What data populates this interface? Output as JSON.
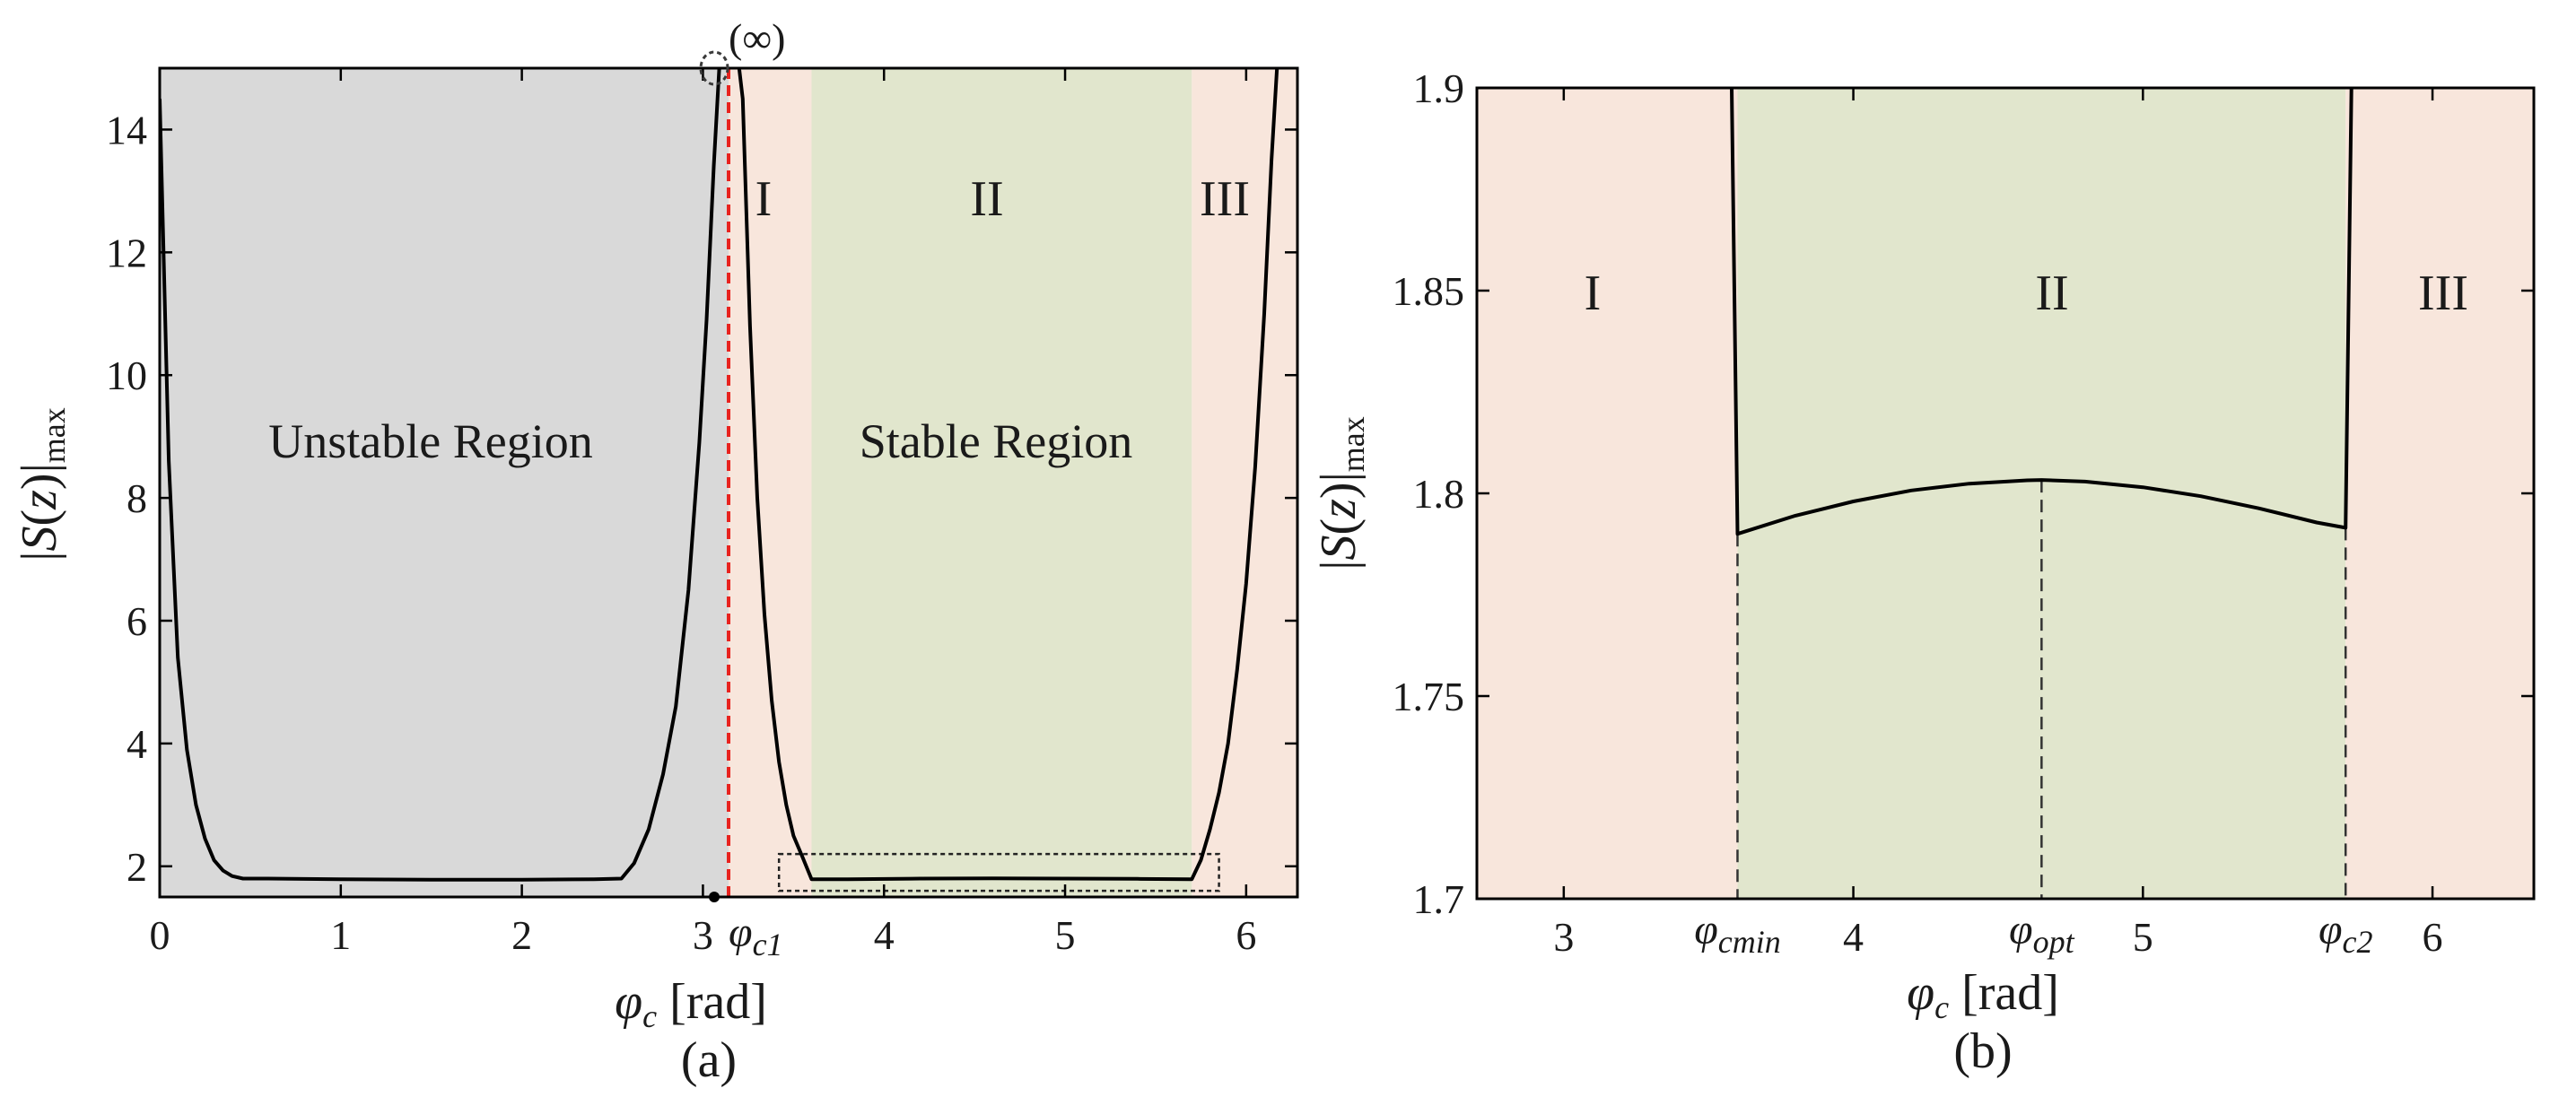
{
  "chart_data": [
    {
      "panel": "a",
      "type": "line",
      "caption": "(a)",
      "xlabel": {
        "symbol": "φ",
        "sub": "c",
        "unit": "[rad]"
      },
      "ylabel": {
        "pre": "|",
        "fn": "S",
        "mid": "(",
        "var": "z",
        "post": ")|",
        "sub": "max"
      },
      "xlim": [
        0,
        6.2832
      ],
      "ylim": [
        1.5,
        15
      ],
      "xticks": [
        0,
        1,
        2,
        3,
        4,
        5,
        6
      ],
      "yticks": [
        2,
        4,
        6,
        8,
        10,
        12,
        14
      ],
      "grid": false,
      "regions": [
        {
          "name": "unstable",
          "x": [
            0,
            3.1416
          ],
          "color": "#d9d9d9"
        },
        {
          "name": "I",
          "x": [
            3.1416,
            3.6
          ],
          "color": "#f8e6dc"
        },
        {
          "name": "II",
          "x": [
            3.6,
            5.7
          ],
          "color": "#e1e6cd"
        },
        {
          "name": "III",
          "x": [
            5.7,
            6.2832
          ],
          "color": "#f8e6dc"
        }
      ],
      "region_labels": [
        "Unstable Region",
        "Stable Region"
      ],
      "roman_labels": [
        "I",
        "II",
        "III"
      ],
      "annotations": {
        "infinity": "(∞)",
        "phi_c1": {
          "symbol": "φ",
          "sub": "c1",
          "x": 3.1416
        }
      },
      "threshold_line": {
        "x": 3.1416,
        "color": "#e8231f"
      },
      "zoom_box": {
        "x": [
          3.42,
          5.85
        ],
        "y": [
          1.6,
          2.2
        ]
      },
      "series": [
        {
          "segment": "left",
          "x": [
            0.0,
            0.05,
            0.1,
            0.15,
            0.2,
            0.25,
            0.3,
            0.35,
            0.4,
            0.46,
            0.6,
            1.0,
            1.5,
            2.0,
            2.4,
            2.55,
            2.62,
            2.7,
            2.78,
            2.85,
            2.92,
            2.98,
            3.02,
            3.06,
            3.09,
            3.1
          ],
          "y": [
            14.5,
            8.6,
            5.4,
            3.9,
            3.0,
            2.45,
            2.1,
            1.93,
            1.84,
            1.8,
            1.8,
            1.79,
            1.78,
            1.78,
            1.79,
            1.8,
            2.05,
            2.6,
            3.5,
            4.6,
            6.5,
            8.9,
            10.9,
            13.4,
            15.0,
            15.0
          ]
        },
        {
          "segment": "right",
          "x": [
            3.2,
            3.22,
            3.26,
            3.3,
            3.34,
            3.38,
            3.42,
            3.46,
            3.5,
            3.55,
            3.6,
            3.8,
            4.2,
            4.6,
            5.0,
            5.4,
            5.7,
            5.75,
            5.8,
            5.85,
            5.9,
            5.95,
            6.0,
            6.05,
            6.1,
            6.14,
            6.17
          ],
          "y": [
            15.0,
            14.5,
            10.8,
            8.0,
            6.1,
            4.7,
            3.7,
            3.0,
            2.5,
            2.15,
            1.79,
            1.79,
            1.8,
            1.803,
            1.8,
            1.795,
            1.79,
            2.1,
            2.6,
            3.2,
            4.0,
            5.2,
            6.6,
            8.5,
            11.0,
            13.5,
            15.0
          ]
        }
      ]
    },
    {
      "panel": "b",
      "type": "line",
      "caption": "(b)",
      "xlabel": {
        "symbol": "φ",
        "sub": "c",
        "unit": "[rad]"
      },
      "ylabel": {
        "pre": "|",
        "fn": "S",
        "mid": "(",
        "var": "z",
        "post": ")|",
        "sub": "max"
      },
      "xlim": [
        2.7,
        6.35
      ],
      "ylim": [
        1.7,
        1.9
      ],
      "xticks": [
        3,
        4,
        5,
        6
      ],
      "yticks": [
        1.7,
        1.75,
        1.8,
        1.85,
        1.9
      ],
      "ytick_labels": [
        "1.7",
        "1.75",
        "1.8",
        "1.85",
        "1.9"
      ],
      "grid": false,
      "regions": [
        {
          "name": "I",
          "x": [
            2.7,
            3.6
          ],
          "color": "#f8e6dc"
        },
        {
          "name": "II",
          "x": [
            3.6,
            5.7
          ],
          "color": "#e1e6cd"
        },
        {
          "name": "III",
          "x": [
            5.7,
            6.35
          ],
          "color": "#f8e6dc"
        }
      ],
      "roman_labels": [
        "I",
        "II",
        "III"
      ],
      "markers": [
        {
          "symbol": "φ",
          "sub": "cmin",
          "x": 3.6
        },
        {
          "symbol": "φ",
          "sub": "opt",
          "x": 4.65
        },
        {
          "symbol": "φ",
          "sub": "c2",
          "x": 5.7
        }
      ],
      "series": [
        {
          "x": [
            3.58,
            3.6,
            3.8,
            4.0,
            4.2,
            4.4,
            4.6,
            4.65,
            4.8,
            5.0,
            5.2,
            5.4,
            5.6,
            5.7,
            5.72
          ],
          "y": [
            1.9,
            1.79,
            1.7945,
            1.798,
            1.8007,
            1.8024,
            1.8032,
            1.8033,
            1.8029,
            1.8015,
            1.7993,
            1.7963,
            1.7928,
            1.7915,
            1.9
          ]
        }
      ]
    }
  ]
}
